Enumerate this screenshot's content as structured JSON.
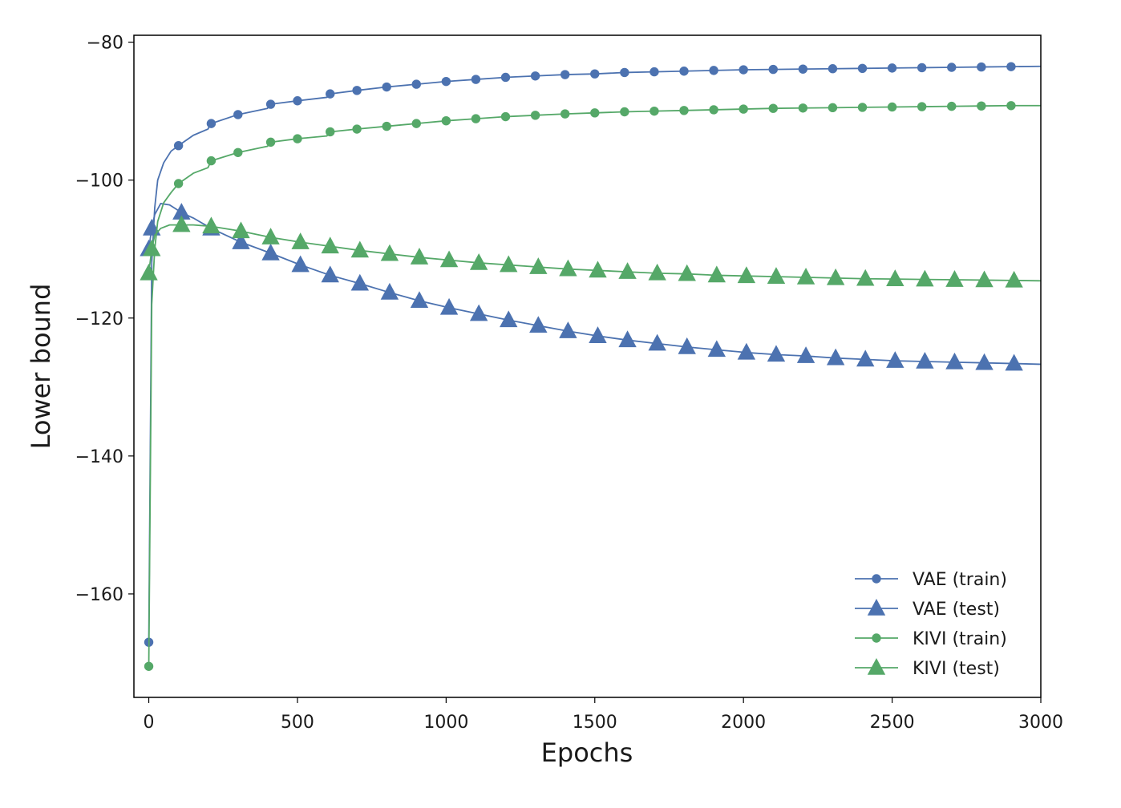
{
  "chart_data": {
    "type": "line",
    "title": "",
    "xlabel": "Epochs",
    "ylabel": "Lower bound",
    "xlim": [
      -50,
      3000
    ],
    "ylim": [
      -175,
      -79
    ],
    "xticks": [
      0,
      500,
      1000,
      1500,
      2000,
      2500,
      3000
    ],
    "yticks": [
      -80,
      -100,
      -120,
      -140,
      -160
    ],
    "ytick_labels": [
      "−80",
      "−100",
      "−120",
      "−140",
      "−160"
    ],
    "grid": false,
    "legend_position": "lower-right",
    "series": [
      {
        "name": "VAE (train)",
        "color": "#4c72b0",
        "marker": "circle",
        "x": [
          0,
          10,
          20,
          30,
          50,
          75,
          100,
          150,
          199,
          210,
          300,
          399,
          410,
          500,
          599,
          610,
          700,
          800,
          900,
          1000,
          1100,
          1200,
          1300,
          1400,
          1500,
          1600,
          1700,
          1800,
          1900,
          2000,
          2100,
          2200,
          2300,
          2400,
          2500,
          2600,
          2700,
          2800,
          2900,
          3000
        ],
        "y": [
          -167,
          -112,
          -104,
          -100,
          -97.5,
          -95.8,
          -95.0,
          -93.5,
          -92.6,
          -91.8,
          -90.5,
          -89.6,
          -89.0,
          -88.5,
          -88.0,
          -87.5,
          -87.0,
          -86.5,
          -86.1,
          -85.7,
          -85.4,
          -85.1,
          -84.9,
          -84.7,
          -84.6,
          -84.4,
          -84.3,
          -84.2,
          -84.1,
          -84.0,
          -83.95,
          -83.9,
          -83.85,
          -83.8,
          -83.75,
          -83.7,
          -83.65,
          -83.6,
          -83.55,
          -83.5
        ]
      },
      {
        "name": "VAE (test)",
        "color": "#4c72b0",
        "marker": "triangle",
        "x": [
          0,
          10,
          20,
          40,
          70,
          110,
          150,
          210,
          310,
          410,
          510,
          610,
          710,
          810,
          910,
          1010,
          1110,
          1210,
          1310,
          1410,
          1510,
          1610,
          1710,
          1810,
          1910,
          2010,
          2110,
          2210,
          2310,
          2410,
          2510,
          2610,
          2710,
          2810,
          2910,
          3000
        ],
        "y": [
          -110,
          -107.0,
          -105.0,
          -103.4,
          -103.6,
          -104.7,
          -105.5,
          -107.0,
          -109.0,
          -110.6,
          -112.3,
          -113.8,
          -115.0,
          -116.3,
          -117.5,
          -118.5,
          -119.4,
          -120.3,
          -121.1,
          -121.9,
          -122.6,
          -123.2,
          -123.7,
          -124.2,
          -124.6,
          -125.0,
          -125.3,
          -125.5,
          -125.8,
          -126.0,
          -126.2,
          -126.3,
          -126.4,
          -126.5,
          -126.6,
          -126.7
        ]
      },
      {
        "name": "KIVI (train)",
        "color": "#55a868",
        "marker": "circle",
        "x": [
          0,
          10,
          20,
          30,
          50,
          75,
          100,
          150,
          199,
          210,
          300,
          399,
          410,
          500,
          599,
          610,
          700,
          800,
          900,
          1000,
          1100,
          1200,
          1300,
          1400,
          1500,
          1600,
          1700,
          1800,
          1900,
          2000,
          2100,
          2200,
          2300,
          2400,
          2500,
          2600,
          2700,
          2800,
          2900,
          3000
        ],
        "y": [
          -170.5,
          -118,
          -110,
          -106,
          -103.3,
          -101.8,
          -100.5,
          -99.0,
          -98.2,
          -97.2,
          -96.0,
          -95.1,
          -94.5,
          -94.0,
          -93.6,
          -93.0,
          -92.6,
          -92.2,
          -91.8,
          -91.4,
          -91.1,
          -90.8,
          -90.6,
          -90.4,
          -90.25,
          -90.1,
          -90.0,
          -89.9,
          -89.8,
          -89.7,
          -89.6,
          -89.55,
          -89.5,
          -89.45,
          -89.4,
          -89.35,
          -89.3,
          -89.25,
          -89.2,
          -89.2
        ]
      },
      {
        "name": "KIVI (test)",
        "color": "#55a868",
        "marker": "triangle",
        "x": [
          0,
          10,
          20,
          40,
          70,
          110,
          150,
          210,
          310,
          410,
          510,
          610,
          710,
          810,
          910,
          1010,
          1110,
          1210,
          1310,
          1410,
          1510,
          1610,
          1710,
          1810,
          1910,
          2010,
          2110,
          2210,
          2310,
          2410,
          2510,
          2610,
          2710,
          2810,
          2910,
          3000
        ],
        "y": [
          -113.5,
          -110.0,
          -108.0,
          -107.0,
          -106.5,
          -106.5,
          -106.5,
          -106.7,
          -107.4,
          -108.3,
          -109.0,
          -109.6,
          -110.2,
          -110.7,
          -111.2,
          -111.6,
          -112.0,
          -112.3,
          -112.6,
          -112.9,
          -113.1,
          -113.3,
          -113.5,
          -113.6,
          -113.8,
          -113.9,
          -114.0,
          -114.1,
          -114.2,
          -114.3,
          -114.35,
          -114.4,
          -114.45,
          -114.5,
          -114.55,
          -114.6
        ]
      }
    ]
  }
}
